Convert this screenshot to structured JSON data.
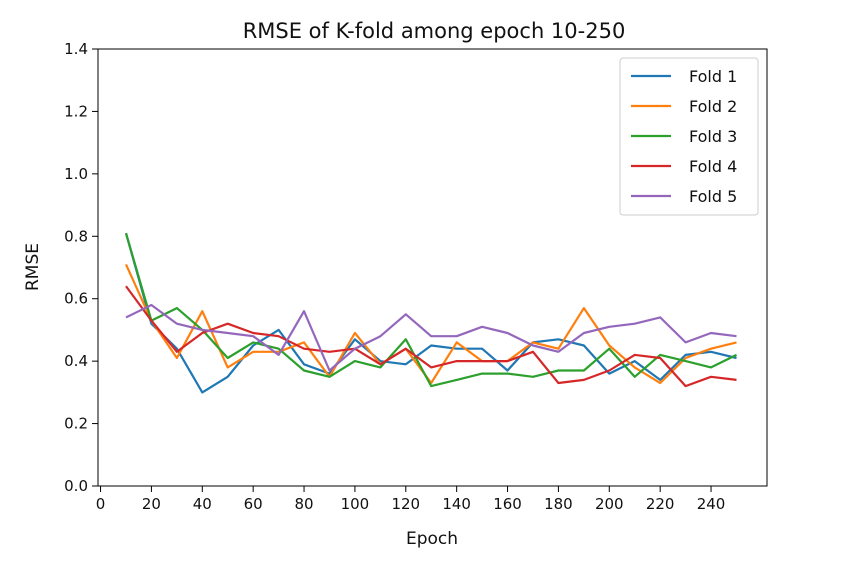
{
  "chart_data": {
    "type": "line",
    "title": "RMSE of K-fold among epoch 10-250",
    "xlabel": "Epoch",
    "ylabel": "RMSE",
    "xlim": [
      -1,
      262
    ],
    "ylim": [
      0.0,
      1.4
    ],
    "xticks": [
      0,
      20,
      40,
      60,
      80,
      100,
      120,
      140,
      160,
      180,
      200,
      220,
      240
    ],
    "yticks": [
      0.0,
      0.2,
      0.4,
      0.6,
      0.8,
      1.0,
      1.2,
      1.4
    ],
    "ytick_labels": [
      "0.0",
      "0.2",
      "0.4",
      "0.6",
      "0.8",
      "1.0",
      "1.2",
      "1.4"
    ],
    "grid": false,
    "legend_position": "top-right",
    "x": [
      10,
      20,
      30,
      40,
      50,
      60,
      70,
      80,
      90,
      100,
      110,
      120,
      130,
      140,
      150,
      160,
      170,
      180,
      190,
      200,
      210,
      220,
      230,
      240,
      250
    ],
    "series": [
      {
        "name": "Fold 1",
        "color": "#1f77b4",
        "values": [
          0.81,
          0.52,
          0.44,
          0.3,
          0.35,
          0.45,
          0.5,
          0.39,
          0.36,
          0.47,
          0.4,
          0.39,
          0.45,
          0.44,
          0.44,
          0.37,
          0.46,
          0.47,
          0.45,
          0.36,
          0.4,
          0.34,
          0.42,
          0.43,
          0.41
        ]
      },
      {
        "name": "Fold 2",
        "color": "#ff7f0e",
        "values": [
          0.71,
          0.53,
          0.41,
          0.56,
          0.38,
          0.43,
          0.43,
          0.46,
          0.35,
          0.49,
          0.39,
          0.44,
          0.33,
          0.46,
          0.4,
          0.4,
          0.46,
          0.44,
          0.57,
          0.45,
          0.38,
          0.33,
          0.41,
          0.44,
          0.46
        ]
      },
      {
        "name": "Fold 3",
        "color": "#2ca02c",
        "values": [
          0.81,
          0.53,
          0.57,
          0.5,
          0.41,
          0.46,
          0.44,
          0.37,
          0.35,
          0.4,
          0.38,
          0.47,
          0.32,
          0.34,
          0.36,
          0.36,
          0.35,
          0.37,
          0.37,
          0.44,
          0.35,
          0.42,
          0.4,
          0.38,
          0.42
        ]
      },
      {
        "name": "Fold 4",
        "color": "#d62728",
        "values": [
          0.64,
          0.53,
          0.43,
          0.49,
          0.52,
          0.49,
          0.48,
          0.44,
          0.43,
          0.44,
          0.39,
          0.44,
          0.38,
          0.4,
          0.4,
          0.4,
          0.43,
          0.33,
          0.34,
          0.37,
          0.42,
          0.41,
          0.32,
          0.35,
          0.34
        ]
      },
      {
        "name": "Fold 5",
        "color": "#9467bd",
        "values": [
          0.54,
          0.58,
          0.52,
          0.5,
          0.49,
          0.48,
          0.42,
          0.56,
          0.37,
          0.44,
          0.48,
          0.55,
          0.48,
          0.48,
          0.51,
          0.49,
          0.45,
          0.43,
          0.49,
          0.51,
          0.52,
          0.54,
          0.46,
          0.49,
          0.48
        ]
      }
    ]
  }
}
